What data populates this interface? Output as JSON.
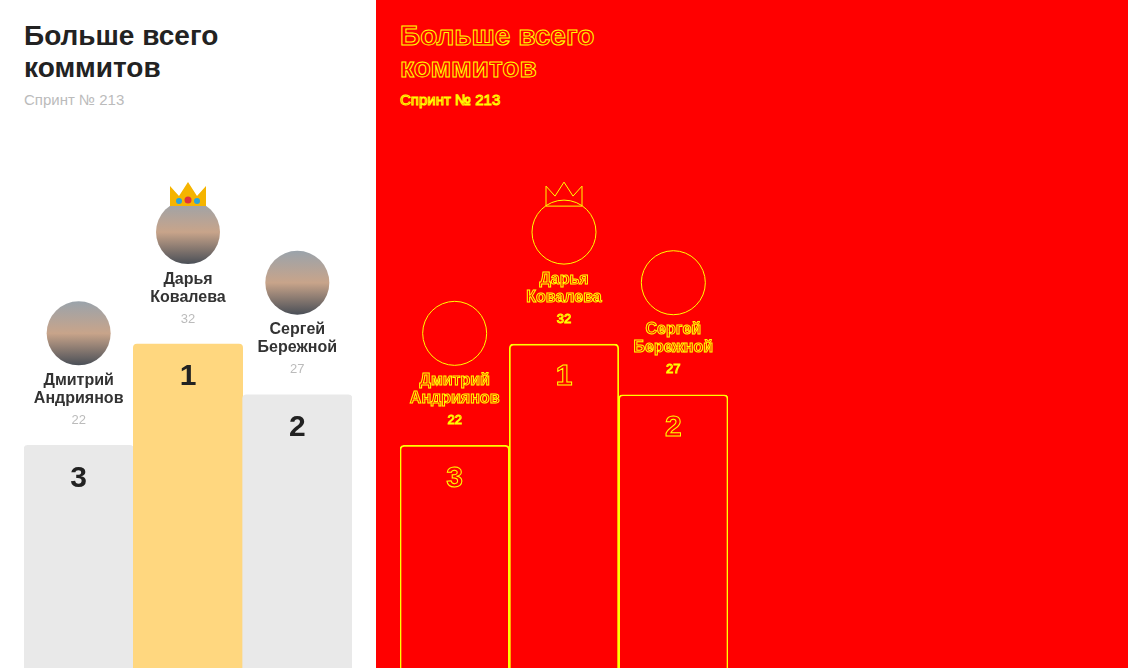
{
  "chart_data": {
    "type": "bar",
    "title": "Больше всего коммитов",
    "subtitle": "Спринт № 213",
    "categories": [
      "Дмитрий Андриянов",
      "Дарья Ковалева",
      "Сергей Бережной"
    ],
    "values": [
      22,
      32,
      27
    ],
    "ranks": [
      3,
      1,
      2
    ],
    "colors": [
      "#e9e9e9",
      "#ffd77f",
      "#e9e9e9"
    ],
    "ylim": [
      0,
      66
    ],
    "grid": false,
    "tick_labels": false,
    "data_labels": true
  }
}
